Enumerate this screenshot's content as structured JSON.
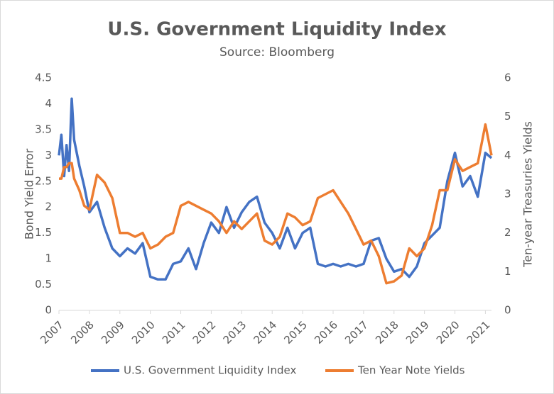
{
  "chart_data": {
    "type": "line",
    "title": "U.S. Government Liquidity Index",
    "subtitle": "Source: Bloomberg",
    "y_label": "Bond Yield Error",
    "y2_label": "Ten-year Treasuries Yields",
    "x": [
      2007,
      2007.08,
      2007.17,
      2007.25,
      2007.33,
      2007.42,
      2007.5,
      2007.67,
      2007.83,
      2008,
      2008.25,
      2008.5,
      2008.75,
      2009,
      2009.25,
      2009.5,
      2009.75,
      2010,
      2010.25,
      2010.5,
      2010.75,
      2011,
      2011.25,
      2011.5,
      2011.75,
      2012,
      2012.25,
      2012.5,
      2012.75,
      2013,
      2013.25,
      2013.5,
      2013.75,
      2014,
      2014.25,
      2014.5,
      2014.75,
      2015,
      2015.25,
      2015.5,
      2015.75,
      2016,
      2016.25,
      2016.5,
      2016.75,
      2017,
      2017.25,
      2017.5,
      2017.75,
      2018,
      2018.25,
      2018.5,
      2018.75,
      2019,
      2019.25,
      2019.5,
      2019.75,
      2020,
      2020.25,
      2020.5,
      2020.75,
      2021,
      2021.2
    ],
    "series": [
      {
        "name": "U.S. Government Liquidity Index",
        "color": "#4472c4",
        "axis": "y",
        "values": [
          3.0,
          3.4,
          2.6,
          3.2,
          2.7,
          4.1,
          3.3,
          2.8,
          2.4,
          1.9,
          2.1,
          1.6,
          1.2,
          1.05,
          1.2,
          1.1,
          1.3,
          0.65,
          0.6,
          0.6,
          0.9,
          0.95,
          1.2,
          0.8,
          1.3,
          1.7,
          1.5,
          2.0,
          1.6,
          1.9,
          2.1,
          2.2,
          1.7,
          1.5,
          1.2,
          1.6,
          1.2,
          1.5,
          1.6,
          0.9,
          0.85,
          0.9,
          0.85,
          0.9,
          0.85,
          0.9,
          1.35,
          1.4,
          1.0,
          0.75,
          0.8,
          0.65,
          0.85,
          1.3,
          1.45,
          1.6,
          2.5,
          3.05,
          2.4,
          2.6,
          2.2,
          3.05,
          2.95
        ]
      },
      {
        "name": "Ten Year Note Yields",
        "color": "#ed7d31",
        "axis": "y2",
        "values": [
          3.4,
          3.4,
          3.7,
          3.7,
          3.8,
          3.8,
          3.4,
          3.1,
          2.7,
          2.6,
          3.5,
          3.3,
          2.9,
          2.0,
          2.0,
          1.9,
          2.0,
          1.6,
          1.7,
          1.9,
          2.0,
          2.7,
          2.8,
          2.7,
          2.6,
          2.5,
          2.3,
          2.0,
          2.3,
          2.1,
          2.3,
          2.5,
          1.8,
          1.7,
          1.9,
          2.5,
          2.4,
          2.2,
          2.3,
          2.9,
          3.0,
          3.1,
          2.8,
          2.5,
          2.1,
          1.7,
          1.8,
          1.4,
          0.7,
          0.75,
          0.9,
          1.6,
          1.4,
          1.6,
          2.2,
          3.1,
          3.1,
          3.9,
          3.6,
          3.7,
          3.8,
          4.8,
          4.0
        ]
      }
    ],
    "xlim": [
      2007,
      2021.2
    ],
    "xticks": [
      2007,
      2008,
      2009,
      2010,
      2011,
      2012,
      2013,
      2014,
      2015,
      2016,
      2017,
      2018,
      2019,
      2020,
      2021
    ],
    "ylim": [
      0,
      4.5
    ],
    "yticks": [
      0,
      0.5,
      1,
      1.5,
      2,
      2.5,
      3,
      3.5,
      4,
      4.5
    ],
    "y2lim": [
      0,
      6
    ],
    "y2ticks": [
      0,
      1,
      2,
      3,
      4,
      5,
      6
    ],
    "legend": "bottom"
  }
}
